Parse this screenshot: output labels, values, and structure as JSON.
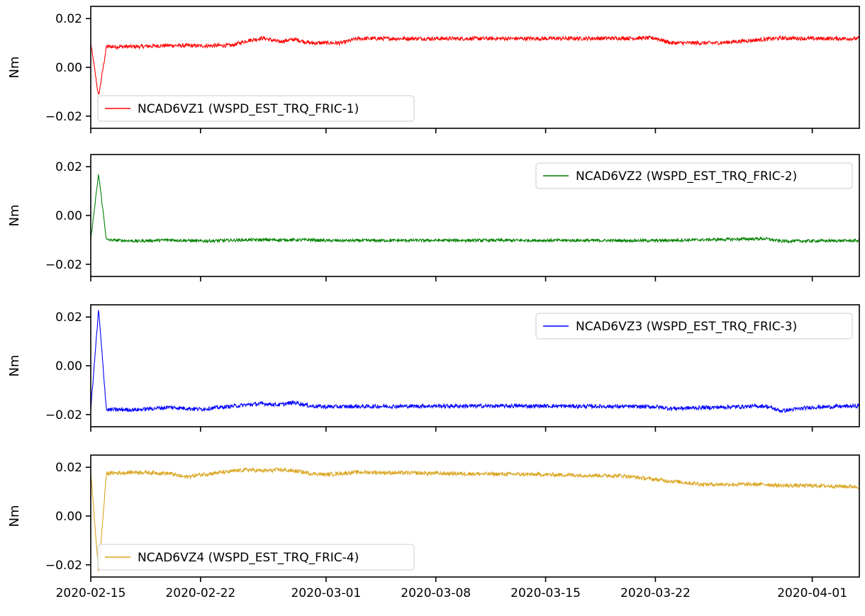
{
  "chart_data": {
    "type": "line",
    "x_axis": {
      "ticks": [
        "2020-02-15",
        "2020-02-22",
        "2020-03-01",
        "2020-03-08",
        "2020-03-15",
        "2020-03-22",
        "2020-04-01"
      ],
      "range": [
        "2020-02-15",
        "2020-04-04"
      ]
    },
    "panels": [
      {
        "ylabel": "Nm",
        "ylim": [
          -0.025,
          0.025
        ],
        "yticks": [
          "0.02",
          "0.00",
          "−0.02"
        ],
        "legend_position": "lower-left",
        "series": {
          "name": "NCAD6VZ1 (WSPD_EST_TRQ_FRIC-1)",
          "color": "#ff0000",
          "x": [
            "2020-02-15",
            "2020-02-15T12",
            "2020-02-16",
            "2020-02-18",
            "2020-02-20",
            "2020-02-22",
            "2020-02-24",
            "2020-02-25",
            "2020-02-26",
            "2020-02-27",
            "2020-02-28",
            "2020-02-29",
            "2020-03-01",
            "2020-03-02",
            "2020-03-03",
            "2020-03-08",
            "2020-03-15",
            "2020-03-22",
            "2020-03-23",
            "2020-03-26",
            "2020-03-29",
            "2020-03-30",
            "2020-04-01",
            "2020-04-04"
          ],
          "y": [
            0.01,
            -0.012,
            0.0085,
            0.0085,
            0.009,
            0.0088,
            0.009,
            0.011,
            0.012,
            0.0105,
            0.0115,
            0.01,
            0.01,
            0.01,
            0.0118,
            0.0118,
            0.0118,
            0.012,
            0.01,
            0.01,
            0.0115,
            0.012,
            0.0118,
            0.0118
          ],
          "noise": 0.0008
        }
      },
      {
        "ylabel": "Nm",
        "ylim": [
          -0.025,
          0.025
        ],
        "yticks": [
          "0.02",
          "0.00",
          "−0.02"
        ],
        "legend_position": "upper-right",
        "series": {
          "name": "NCAD6VZ2 (WSPD_EST_TRQ_FRIC-2)",
          "color": "#008000",
          "x": [
            "2020-02-15",
            "2020-02-15T12",
            "2020-02-16",
            "2020-02-18",
            "2020-02-20",
            "2020-02-22",
            "2020-02-25",
            "2020-02-27",
            "2020-02-29",
            "2020-03-01",
            "2020-03-08",
            "2020-03-15",
            "2020-03-22",
            "2020-03-29",
            "2020-03-30",
            "2020-04-04"
          ],
          "y": [
            -0.01,
            0.017,
            -0.01,
            -0.0105,
            -0.01,
            -0.0105,
            -0.01,
            -0.01,
            -0.01,
            -0.0103,
            -0.0102,
            -0.0102,
            -0.0103,
            -0.0095,
            -0.0105,
            -0.0103
          ],
          "noise": 0.0006
        }
      },
      {
        "ylabel": "Nm",
        "ylim": [
          -0.025,
          0.025
        ],
        "yticks": [
          "0.02",
          "0.00",
          "−0.02"
        ],
        "legend_position": "upper-right",
        "series": {
          "name": "NCAD6VZ3 (WSPD_EST_TRQ_FRIC-3)",
          "color": "#0000ff",
          "x": [
            "2020-02-15",
            "2020-02-15T12",
            "2020-02-16",
            "2020-02-18",
            "2020-02-20",
            "2020-02-22",
            "2020-02-25",
            "2020-02-26",
            "2020-02-27",
            "2020-02-28",
            "2020-02-29",
            "2020-03-01",
            "2020-03-08",
            "2020-03-15",
            "2020-03-22",
            "2020-03-23",
            "2020-03-29",
            "2020-03-30",
            "2020-04-01",
            "2020-04-04"
          ],
          "y": [
            -0.018,
            0.023,
            -0.018,
            -0.018,
            -0.017,
            -0.0178,
            -0.016,
            -0.0155,
            -0.016,
            -0.015,
            -0.0165,
            -0.0168,
            -0.0165,
            -0.0165,
            -0.0168,
            -0.0175,
            -0.0165,
            -0.0185,
            -0.017,
            -0.0165
          ],
          "noise": 0.0008
        }
      },
      {
        "ylabel": "Nm",
        "ylim": [
          -0.025,
          0.025
        ],
        "yticks": [
          "0.02",
          "0.00",
          "−0.02"
        ],
        "legend_position": "lower-left",
        "series": {
          "name": "NCAD6VZ4 (WSPD_EST_TRQ_FRIC-4)",
          "color": "#daa520",
          "x": [
            "2020-02-15",
            "2020-02-15T12",
            "2020-02-16",
            "2020-02-18",
            "2020-02-20",
            "2020-02-21",
            "2020-02-22",
            "2020-02-25",
            "2020-02-26",
            "2020-02-27",
            "2020-02-28",
            "2020-02-29",
            "2020-03-01",
            "2020-03-03",
            "2020-03-08",
            "2020-03-15",
            "2020-03-20",
            "2020-03-22",
            "2020-03-25",
            "2020-03-29",
            "2020-03-30",
            "2020-04-01",
            "2020-04-04"
          ],
          "y": [
            0.018,
            -0.023,
            0.0175,
            0.018,
            0.0175,
            0.016,
            0.017,
            0.019,
            0.0185,
            0.019,
            0.0185,
            0.0175,
            0.017,
            0.018,
            0.0175,
            0.017,
            0.0165,
            0.015,
            0.013,
            0.013,
            0.0125,
            0.0125,
            0.012
          ],
          "noise": 0.0008
        }
      }
    ]
  }
}
